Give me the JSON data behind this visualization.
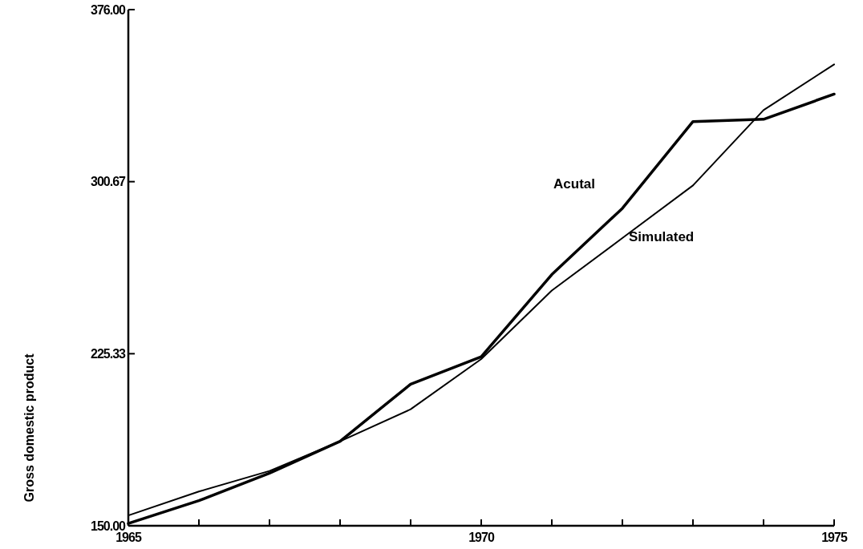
{
  "chart_data": {
    "type": "line",
    "ylabel": "Gross domestic product",
    "x": [
      1965,
      1966,
      1967,
      1968,
      1969,
      1970,
      1971,
      1972,
      1973,
      1974,
      1975
    ],
    "series": [
      {
        "name": "Acutal",
        "color": "#000000",
        "values": [
          151,
          161,
          173,
          187,
          212,
          224,
          260,
          289,
          327,
          328,
          339
        ]
      },
      {
        "name": "Simulated",
        "color": "#000000",
        "values": [
          154.5,
          165,
          174,
          187,
          201,
          223,
          253,
          276,
          299,
          332,
          352
        ]
      }
    ],
    "xlim": [
      1965,
      1975
    ],
    "xticks": [
      1965,
      {
        "value": 1966,
        "label": null
      },
      {
        "value": 1967,
        "label": null
      },
      {
        "value": 1968,
        "label": null
      },
      {
        "value": 1969,
        "label": null
      },
      1970,
      {
        "value": 1971,
        "label": null
      },
      {
        "value": 1972,
        "label": null
      },
      {
        "value": 1973,
        "label": null
      },
      {
        "value": 1974,
        "label": null
      },
      1975
    ],
    "ylim": [
      150,
      376
    ],
    "yticks": [
      {
        "value": 150,
        "label": "150.00"
      },
      {
        "value": 225.33,
        "label": "225.33"
      },
      {
        "value": 300.67,
        "label": "300.67"
      },
      {
        "value": 376,
        "label": "376.00"
      }
    ],
    "grid": false,
    "marker": "none",
    "line_style": "solid"
  }
}
